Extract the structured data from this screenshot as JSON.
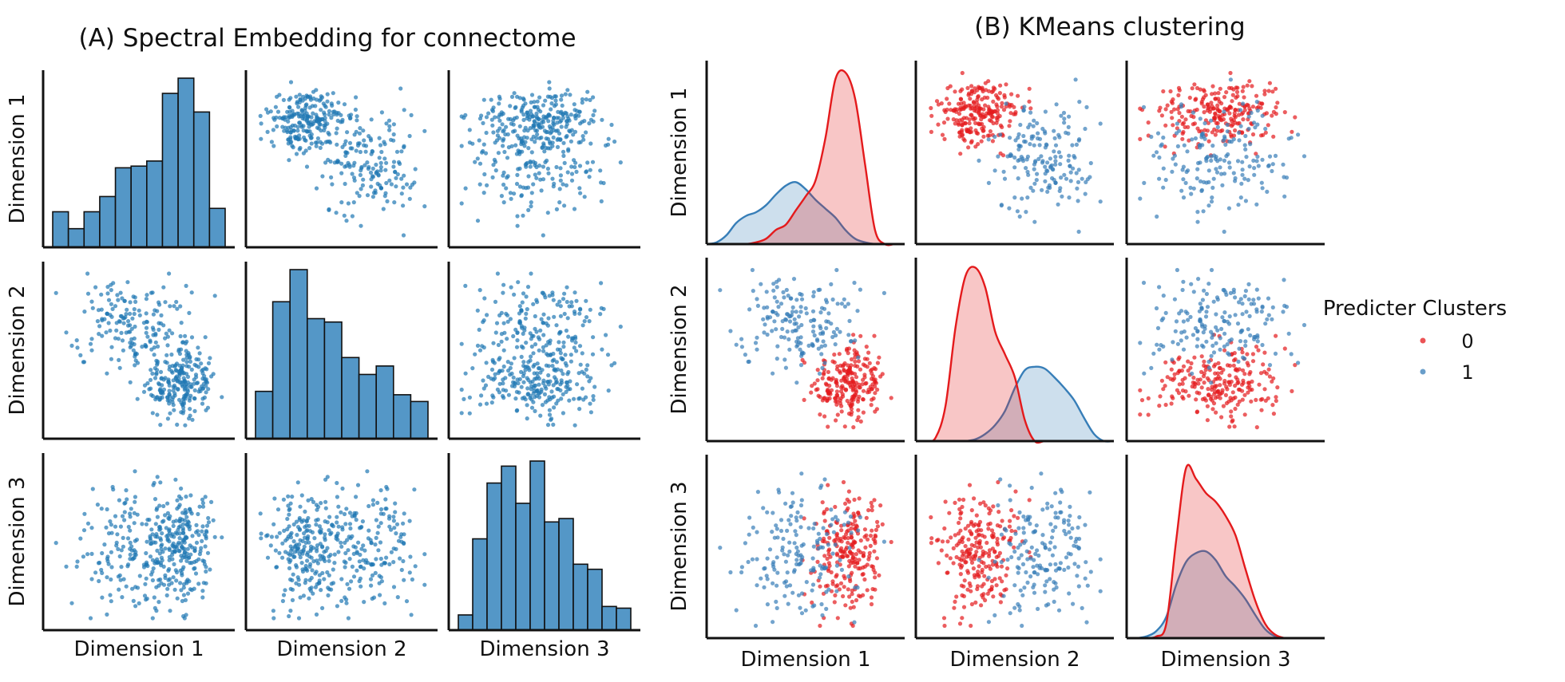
{
  "figure": {
    "panel_a_title": "(A) Spectral Embedding for connectome",
    "panel_b_title": "(B) KMeans clustering",
    "legend": {
      "title": "Predicter Clusters",
      "items": [
        {
          "label": "0",
          "color": "#e41a1c"
        },
        {
          "label": "1",
          "color": "#377eb8"
        }
      ]
    }
  },
  "chart_data": [
    {
      "type": "scatter",
      "subtype": "pairplot-histogram-diagonal",
      "title": "(A) Spectral Embedding for connectome",
      "variables": [
        "Dimension 1",
        "Dimension 2",
        "Dimension 3"
      ],
      "row_labels": [
        "Dimension 1",
        "Dimension 2",
        "Dimension 3"
      ],
      "col_labels": [
        "Dimension 1",
        "Dimension 2",
        "Dimension 3"
      ],
      "color": "#1f77b4",
      "hist_fill": "#5497c7",
      "ticks_shown": false,
      "grid": false,
      "diagonal_histograms": [
        {
          "variable": "Dimension 1",
          "relative_counts": [
            0.21,
            0.11,
            0.21,
            0.3,
            0.47,
            0.48,
            0.51,
            0.91,
            1.0,
            0.8,
            0.23
          ]
        },
        {
          "variable": "Dimension 2",
          "relative_counts": [
            0.28,
            0.81,
            1.0,
            0.71,
            0.69,
            0.48,
            0.38,
            0.43,
            0.26,
            0.22
          ]
        },
        {
          "variable": "Dimension 3",
          "relative_counts": [
            0.09,
            0.54,
            0.87,
            0.97,
            0.75,
            1.0,
            0.64,
            0.66,
            0.39,
            0.36,
            0.14,
            0.13
          ]
        }
      ],
      "point_count_approx": 400,
      "note": "Off-diagonal panels show pairwise scatter of the same points; points are normalized to [0,1] per dimension"
    },
    {
      "type": "scatter",
      "subtype": "pairplot-kde-diagonal",
      "title": "(B) KMeans clustering",
      "variables": [
        "Dimension 1",
        "Dimension 2",
        "Dimension 3"
      ],
      "row_labels": [
        "Dimension 1",
        "Dimension 2",
        "Dimension 3"
      ],
      "col_labels": [
        "Dimension 1",
        "Dimension 2",
        "Dimension 3"
      ],
      "hue": "Predicter Clusters",
      "legend_position": "right",
      "ticks_shown": false,
      "grid": false,
      "clusters": [
        {
          "label": "0",
          "color": "#e41a1c",
          "count_approx": 230,
          "mean": [
            0.74,
            0.3,
            0.47
          ],
          "std": [
            0.1,
            0.12,
            0.17
          ]
        },
        {
          "label": "1",
          "color": "#377eb8",
          "count_approx": 170,
          "mean": [
            0.45,
            0.66,
            0.45
          ],
          "std": [
            0.16,
            0.13,
            0.19
          ]
        }
      ],
      "diagonal_kde": [
        {
          "variable": "Dimension 1",
          "x": [
            0.0,
            0.05,
            0.1,
            0.15,
            0.2,
            0.25,
            0.3,
            0.35,
            0.4,
            0.45,
            0.5,
            0.55,
            0.6,
            0.65,
            0.7,
            0.75,
            0.8,
            0.85,
            0.9,
            0.95,
            1.0
          ],
          "cluster_0": [
            0.0,
            0.0,
            0.0,
            0.0,
            0.0,
            0.01,
            0.03,
            0.08,
            0.11,
            0.19,
            0.27,
            0.36,
            0.6,
            0.93,
            0.97,
            0.82,
            0.45,
            0.08,
            0.0,
            0.0,
            0.0
          ],
          "cluster_1": [
            0.0,
            0.01,
            0.05,
            0.12,
            0.16,
            0.18,
            0.22,
            0.28,
            0.33,
            0.35,
            0.31,
            0.25,
            0.2,
            0.15,
            0.08,
            0.03,
            0.01,
            0.0,
            0.0,
            0.0,
            0.0
          ]
        },
        {
          "variable": "Dimension 2",
          "x": [
            0.0,
            0.05,
            0.1,
            0.15,
            0.2,
            0.25,
            0.3,
            0.35,
            0.4,
            0.45,
            0.5,
            0.55,
            0.6,
            0.65,
            0.7,
            0.75,
            0.8,
            0.85,
            0.9,
            0.95,
            1.0
          ],
          "cluster_0": [
            0.0,
            0.0,
            0.02,
            0.2,
            0.64,
            0.93,
            0.98,
            0.87,
            0.62,
            0.49,
            0.36,
            0.12,
            0.0,
            0.0,
            0.0,
            0.0,
            0.0,
            0.0,
            0.0,
            0.0,
            0.0
          ],
          "cluster_1": [
            0.0,
            0.0,
            0.0,
            0.0,
            0.0,
            0.0,
            0.01,
            0.04,
            0.09,
            0.17,
            0.3,
            0.4,
            0.42,
            0.41,
            0.36,
            0.3,
            0.23,
            0.13,
            0.04,
            0.0,
            0.0
          ]
        },
        {
          "variable": "Dimension 3",
          "x": [
            0.0,
            0.05,
            0.1,
            0.15,
            0.2,
            0.25,
            0.3,
            0.35,
            0.4,
            0.45,
            0.5,
            0.55,
            0.6,
            0.65,
            0.7,
            0.75,
            0.8,
            0.85,
            0.9,
            0.95,
            1.0
          ],
          "cluster_0": [
            0.0,
            0.0,
            0.0,
            0.01,
            0.08,
            0.55,
            0.96,
            0.9,
            0.82,
            0.77,
            0.69,
            0.58,
            0.39,
            0.21,
            0.08,
            0.02,
            0.0,
            0.0,
            0.0,
            0.0,
            0.0
          ],
          "cluster_1": [
            0.0,
            0.0,
            0.01,
            0.04,
            0.12,
            0.3,
            0.43,
            0.48,
            0.49,
            0.44,
            0.35,
            0.29,
            0.22,
            0.13,
            0.05,
            0.01,
            0.0,
            0.0,
            0.0,
            0.0,
            0.0
          ]
        }
      ]
    }
  ]
}
